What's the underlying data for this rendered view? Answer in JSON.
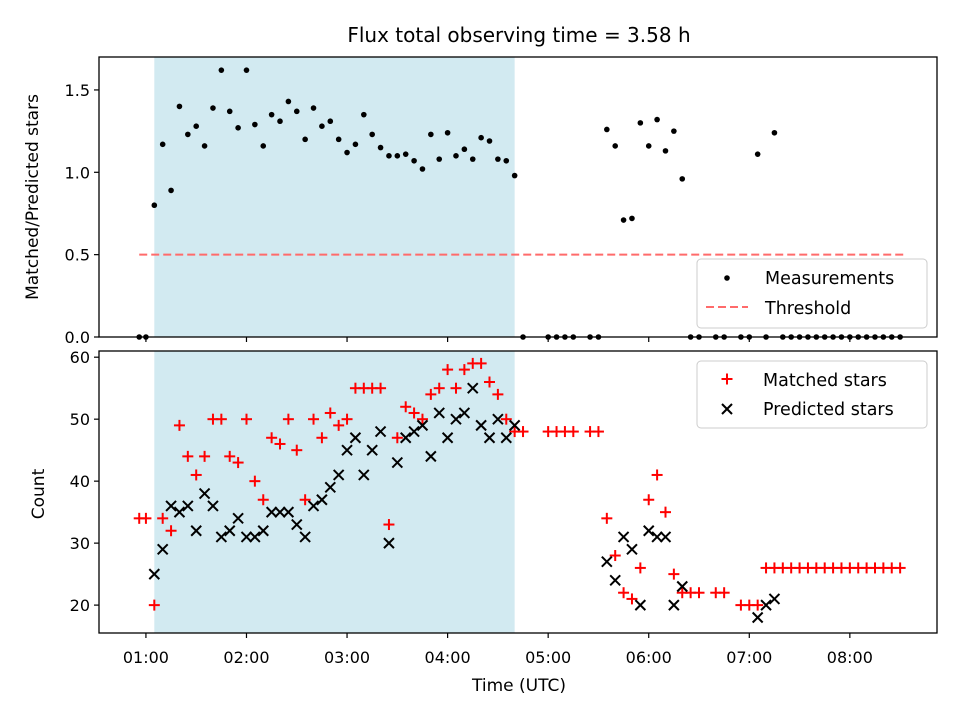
{
  "title": "Flux total observing time = 3.58 h",
  "colors": {
    "shade": "#add8e6",
    "measurements": "#000000",
    "threshold": "#ff6b6b",
    "matched": "#ff0000",
    "predicted": "#000000"
  },
  "chart_data": [
    {
      "type": "scatter",
      "ylabel": "Matched/Predicted stars",
      "xlabel": "",
      "ylim": [
        0,
        1.7
      ],
      "yticks": [
        "0.0",
        "0.5",
        "1.0",
        "1.5"
      ],
      "xlim": [
        "00:32",
        "08:52"
      ],
      "grid": false,
      "legend_placement": "lower-right",
      "shaded_interval": [
        "01:05",
        "04:40"
      ],
      "threshold": {
        "name": "Threshold",
        "value": 0.5,
        "x_start": "00:56",
        "x_end": "08:32"
      },
      "series": [
        {
          "name": "Measurements",
          "marker": "dot",
          "x": [
            "00:56",
            "01:00",
            "01:05",
            "01:10",
            "01:15",
            "01:20",
            "01:25",
            "01:30",
            "01:35",
            "01:40",
            "01:45",
            "01:50",
            "01:55",
            "02:00",
            "02:05",
            "02:10",
            "02:15",
            "02:20",
            "02:25",
            "02:30",
            "02:35",
            "02:40",
            "02:45",
            "02:50",
            "02:55",
            "03:00",
            "03:05",
            "03:10",
            "03:15",
            "03:20",
            "03:25",
            "03:30",
            "03:35",
            "03:40",
            "03:45",
            "03:50",
            "03:55",
            "04:00",
            "04:05",
            "04:10",
            "04:15",
            "04:20",
            "04:25",
            "04:30",
            "04:35",
            "04:40",
            "04:45",
            "05:00",
            "05:05",
            "05:10",
            "05:15",
            "05:25",
            "05:30",
            "05:35",
            "05:40",
            "05:45",
            "05:50",
            "05:55",
            "06:00",
            "06:05",
            "06:10",
            "06:15",
            "06:20",
            "06:25",
            "06:30",
            "06:40",
            "06:45",
            "06:55",
            "07:00",
            "07:05",
            "07:10",
            "07:15",
            "07:20",
            "07:25",
            "07:30",
            "07:35",
            "07:40",
            "07:45",
            "07:50",
            "07:55",
            "08:00",
            "08:05",
            "08:10",
            "08:15",
            "08:20",
            "08:25",
            "08:30"
          ],
          "y": [
            0,
            0,
            0.8,
            1.17,
            0.89,
            1.4,
            1.23,
            1.28,
            1.16,
            1.39,
            1.62,
            1.37,
            1.27,
            1.62,
            1.29,
            1.16,
            1.35,
            1.31,
            1.43,
            1.37,
            1.2,
            1.39,
            1.28,
            1.31,
            1.2,
            1.12,
            1.17,
            1.35,
            1.23,
            1.15,
            1.1,
            1.1,
            1.11,
            1.07,
            1.02,
            1.23,
            1.08,
            1.24,
            1.1,
            1.14,
            1.08,
            1.21,
            1.19,
            1.08,
            1.07,
            0.98,
            0,
            0,
            0,
            0,
            0,
            0,
            0,
            1.26,
            1.16,
            0.71,
            0.72,
            1.3,
            1.16,
            1.32,
            1.13,
            1.25,
            0.96,
            0,
            0,
            0,
            0,
            0,
            0,
            1.11,
            0,
            1.24,
            0,
            0,
            0,
            0,
            0,
            0,
            0,
            0,
            0,
            0,
            0,
            0,
            0,
            0,
            0
          ]
        }
      ]
    },
    {
      "type": "scatter",
      "ylabel": "Count",
      "xlabel": "Time (UTC)",
      "ylim": [
        15.5,
        61
      ],
      "yticks": [
        "20",
        "30",
        "40",
        "50",
        "60"
      ],
      "xlim": [
        "00:32",
        "08:52"
      ],
      "xticks": [
        "01:00",
        "02:00",
        "03:00",
        "04:00",
        "05:00",
        "06:00",
        "07:00",
        "08:00"
      ],
      "grid": false,
      "legend_placement": "upper-right",
      "shaded_interval": [
        "01:05",
        "04:40"
      ],
      "series": [
        {
          "name": "Matched stars",
          "marker": "plus",
          "x": [
            "00:56",
            "01:00",
            "01:05",
            "01:10",
            "01:15",
            "01:20",
            "01:25",
            "01:30",
            "01:35",
            "01:40",
            "01:45",
            "01:50",
            "01:55",
            "02:00",
            "02:05",
            "02:10",
            "02:15",
            "02:20",
            "02:25",
            "02:30",
            "02:35",
            "02:40",
            "02:45",
            "02:50",
            "02:55",
            "03:00",
            "03:05",
            "03:10",
            "03:15",
            "03:20",
            "03:25",
            "03:30",
            "03:35",
            "03:40",
            "03:45",
            "03:50",
            "03:55",
            "04:00",
            "04:05",
            "04:10",
            "04:15",
            "04:20",
            "04:25",
            "04:30",
            "04:35",
            "04:40",
            "04:45",
            "05:00",
            "05:05",
            "05:10",
            "05:15",
            "05:25",
            "05:30",
            "05:35",
            "05:40",
            "05:45",
            "05:50",
            "05:55",
            "06:00",
            "06:05",
            "06:10",
            "06:15",
            "06:20",
            "06:25",
            "06:30",
            "06:40",
            "06:45",
            "06:55",
            "07:00",
            "07:05",
            "07:10",
            "07:15",
            "07:20",
            "07:25",
            "07:30",
            "07:35",
            "07:40",
            "07:45",
            "07:50",
            "07:55",
            "08:00",
            "08:05",
            "08:10",
            "08:15",
            "08:20",
            "08:25",
            "08:30"
          ],
          "y": [
            34,
            34,
            20,
            34,
            32,
            49,
            44,
            41,
            44,
            50,
            50,
            44,
            43,
            50,
            40,
            37,
            47,
            46,
            50,
            45,
            37,
            50,
            47,
            51,
            49,
            50,
            55,
            55,
            55,
            55,
            33,
            47,
            52,
            51,
            50,
            54,
            55,
            58,
            55,
            58,
            59,
            59,
            56,
            54,
            50,
            48,
            48,
            48,
            48,
            48,
            48,
            48,
            48,
            34,
            28,
            22,
            21,
            26,
            37,
            41,
            35,
            25,
            22,
            22,
            22,
            22,
            22,
            20,
            20,
            20,
            26,
            26,
            26,
            26,
            26,
            26,
            26,
            26,
            26,
            26,
            26,
            26,
            26,
            26,
            26,
            26,
            26
          ]
        },
        {
          "name": "Predicted stars",
          "marker": "x",
          "x": [
            "01:05",
            "01:10",
            "01:15",
            "01:20",
            "01:25",
            "01:30",
            "01:35",
            "01:40",
            "01:45",
            "01:50",
            "01:55",
            "02:00",
            "02:05",
            "02:10",
            "02:15",
            "02:20",
            "02:25",
            "02:30",
            "02:35",
            "02:40",
            "02:45",
            "02:50",
            "02:55",
            "03:00",
            "03:05",
            "03:10",
            "03:15",
            "03:20",
            "03:25",
            "03:30",
            "03:35",
            "03:40",
            "03:45",
            "03:50",
            "03:55",
            "04:00",
            "04:05",
            "04:10",
            "04:15",
            "04:20",
            "04:25",
            "04:30",
            "04:35",
            "04:40",
            "05:35",
            "05:40",
            "05:45",
            "05:50",
            "05:55",
            "06:00",
            "06:05",
            "06:10",
            "06:15",
            "06:20",
            "07:05",
            "07:10",
            "07:15"
          ],
          "y": [
            25,
            29,
            36,
            35,
            36,
            32,
            38,
            36,
            31,
            32,
            34,
            31,
            31,
            32,
            35,
            35,
            35,
            33,
            31,
            36,
            37,
            39,
            41,
            45,
            47,
            41,
            45,
            48,
            30,
            43,
            47,
            48,
            49,
            44,
            51,
            47,
            50,
            51,
            55,
            49,
            47,
            50,
            47,
            49,
            27,
            24,
            31,
            29,
            20,
            32,
            31,
            31,
            20,
            23,
            18,
            20,
            21
          ]
        }
      ]
    }
  ]
}
